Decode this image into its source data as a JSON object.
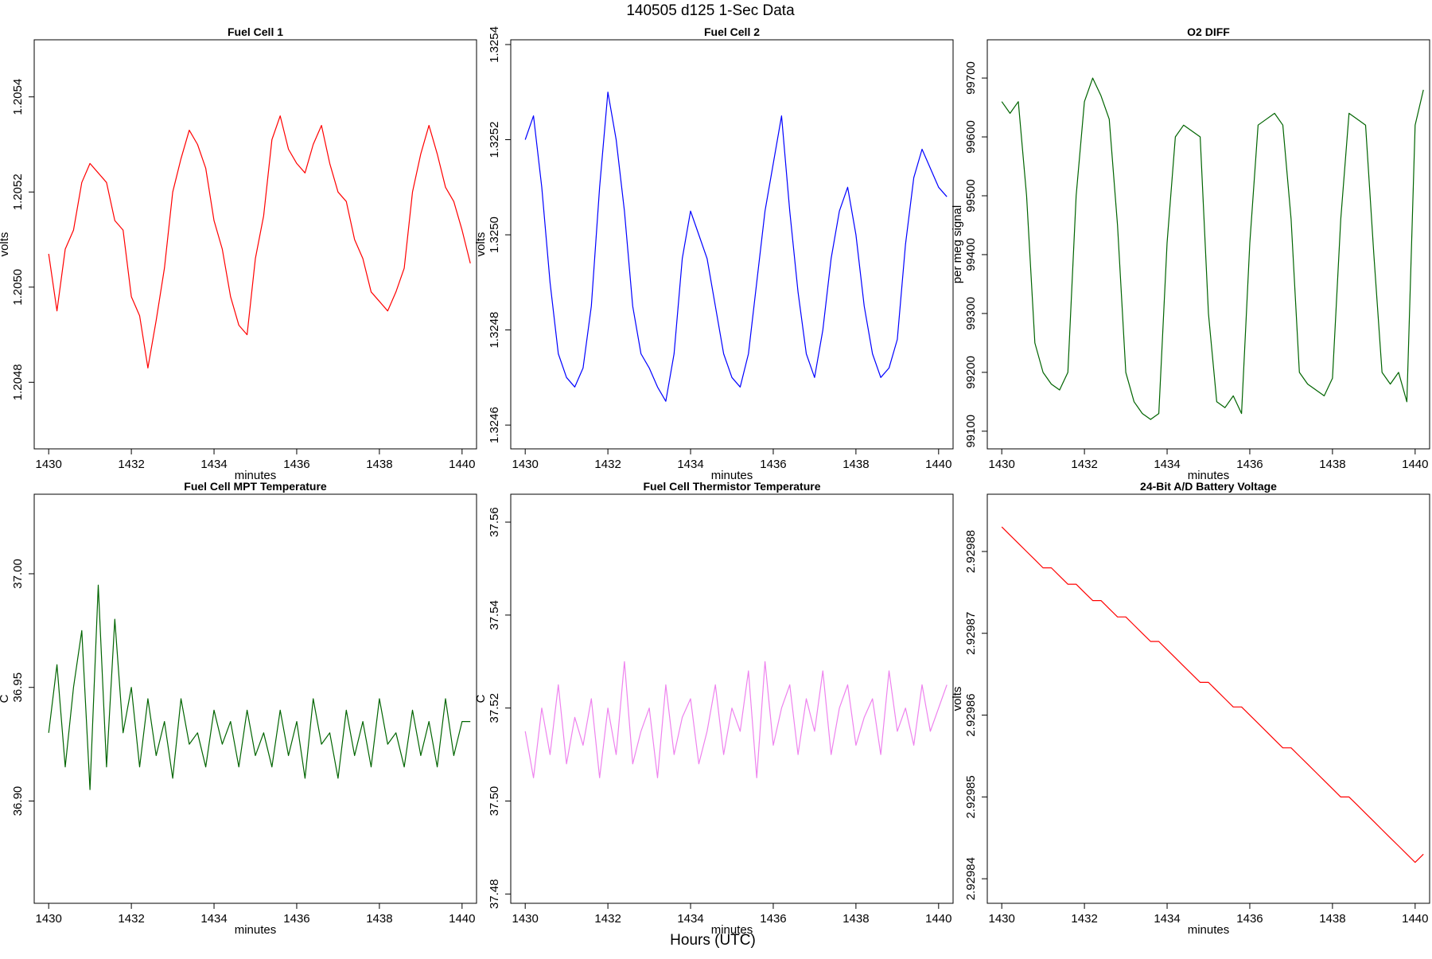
{
  "figure": {
    "title": "140505   d125   1-Sec Data",
    "bottom_label": "Hours (UTC)"
  },
  "chart_data": [
    {
      "type": "line",
      "title": "Fuel Cell 1",
      "xlabel": "minutes",
      "ylabel": "volts",
      "color": "#ff0000",
      "xlim": [
        1429.65,
        1440.35
      ],
      "ylim": [
        1.20466,
        1.20552
      ],
      "xticks": [
        1430,
        1432,
        1434,
        1436,
        1438,
        1440
      ],
      "xtick_labels": [
        "1430",
        "1432",
        "1434",
        "1436",
        "1438",
        "1440"
      ],
      "yticks": [
        1.2048,
        1.205,
        1.2052,
        1.2054
      ],
      "ytick_labels": [
        "1.2048",
        "1.2050",
        "1.2052",
        "1.2054"
      ],
      "x_start": 1430,
      "x_step": 0.2,
      "y": [
        1.20507,
        1.20495,
        1.20508,
        1.20512,
        1.20522,
        1.20526,
        1.20524,
        1.20522,
        1.20514,
        1.20512,
        1.20498,
        1.20494,
        1.20483,
        1.20493,
        1.20504,
        1.2052,
        1.20527,
        1.20533,
        1.2053,
        1.20525,
        1.20514,
        1.20508,
        1.20498,
        1.20492,
        1.2049,
        1.20506,
        1.20515,
        1.20531,
        1.20536,
        1.20529,
        1.20526,
        1.20524,
        1.2053,
        1.20534,
        1.20526,
        1.2052,
        1.20518,
        1.2051,
        1.20506,
        1.20499,
        1.20497,
        1.20495,
        1.20499,
        1.20504,
        1.2052,
        1.20528,
        1.20534,
        1.20528,
        1.20521,
        1.20518,
        1.20512,
        1.20505
      ]
    },
    {
      "type": "line",
      "title": "Fuel Cell 2",
      "xlabel": "minutes",
      "ylabel": "volts",
      "color": "#0000ff",
      "xlim": [
        1429.65,
        1440.35
      ],
      "ylim": [
        1.32455,
        1.32541
      ],
      "xticks": [
        1430,
        1432,
        1434,
        1436,
        1438,
        1440
      ],
      "xtick_labels": [
        "1430",
        "1432",
        "1434",
        "1436",
        "1438",
        "1440"
      ],
      "yticks": [
        1.3246,
        1.3248,
        1.325,
        1.3252,
        1.3254
      ],
      "ytick_labels": [
        "1.3246",
        "1.3248",
        "1.3250",
        "1.3252",
        "1.3254"
      ],
      "x_start": 1430,
      "x_step": 0.2,
      "y": [
        1.3252,
        1.32525,
        1.3251,
        1.3249,
        1.32475,
        1.3247,
        1.32468,
        1.32472,
        1.32485,
        1.3251,
        1.3253,
        1.3252,
        1.32505,
        1.32485,
        1.32475,
        1.32472,
        1.32468,
        1.32465,
        1.32475,
        1.32495,
        1.32505,
        1.325,
        1.32495,
        1.32485,
        1.32475,
        1.3247,
        1.32468,
        1.32475,
        1.3249,
        1.32505,
        1.32515,
        1.32525,
        1.32505,
        1.32488,
        1.32475,
        1.3247,
        1.3248,
        1.32495,
        1.32505,
        1.3251,
        1.325,
        1.32485,
        1.32475,
        1.3247,
        1.32472,
        1.32478,
        1.32498,
        1.32512,
        1.32518,
        1.32514,
        1.3251,
        1.32508
      ]
    },
    {
      "type": "line",
      "title": "O2 DIFF",
      "xlabel": "minutes",
      "ylabel": "per meg signal",
      "color": "#006400",
      "xlim": [
        1429.65,
        1440.35
      ],
      "ylim": [
        99070,
        99765
      ],
      "xticks": [
        1430,
        1432,
        1434,
        1436,
        1438,
        1440
      ],
      "xtick_labels": [
        "1430",
        "1432",
        "1434",
        "1436",
        "1438",
        "1440"
      ],
      "yticks": [
        99100,
        99200,
        99300,
        99400,
        99500,
        99600,
        99700
      ],
      "ytick_labels": [
        "99100",
        "99200",
        "99300",
        "99400",
        "99500",
        "99600",
        "99700"
      ],
      "x_start": 1430,
      "x_step": 0.2,
      "y": [
        99660,
        99640,
        99660,
        99500,
        99250,
        99200,
        99180,
        99170,
        99200,
        99500,
        99660,
        99700,
        99670,
        99630,
        99450,
        99200,
        99150,
        99130,
        99120,
        99130,
        99420,
        99600,
        99620,
        99610,
        99600,
        99300,
        99150,
        99140,
        99160,
        99130,
        99420,
        99620,
        99630,
        99640,
        99620,
        99460,
        99200,
        99180,
        99170,
        99160,
        99190,
        99460,
        99640,
        99630,
        99620,
        99400,
        99200,
        99180,
        99200,
        99150,
        99620,
        99680
      ]
    },
    {
      "type": "line",
      "title": "Fuel Cell MPT Temperature",
      "xlabel": "minutes",
      "ylabel": "C",
      "color": "#006400",
      "xlim": [
        1429.65,
        1440.35
      ],
      "ylim": [
        36.855,
        37.035
      ],
      "xticks": [
        1430,
        1432,
        1434,
        1436,
        1438,
        1440
      ],
      "xtick_labels": [
        "1430",
        "1432",
        "1434",
        "1436",
        "1438",
        "1440"
      ],
      "yticks": [
        36.9,
        36.95,
        37.0
      ],
      "ytick_labels": [
        "36.90",
        "36.95",
        "37.00"
      ],
      "x_start": 1430,
      "x_step": 0.2,
      "y": [
        36.93,
        36.96,
        36.915,
        36.95,
        36.975,
        36.905,
        36.995,
        36.915,
        36.98,
        36.93,
        36.95,
        36.915,
        36.945,
        36.92,
        36.935,
        36.91,
        36.945,
        36.925,
        36.93,
        36.915,
        36.94,
        36.925,
        36.935,
        36.915,
        36.94,
        36.92,
        36.93,
        36.915,
        36.94,
        36.92,
        36.935,
        36.91,
        36.945,
        36.925,
        36.93,
        36.91,
        36.94,
        36.92,
        36.935,
        36.915,
        36.945,
        36.925,
        36.93,
        36.915,
        36.94,
        36.92,
        36.935,
        36.915,
        36.945,
        36.92,
        36.935,
        36.935
      ]
    },
    {
      "type": "line",
      "title": "Fuel Cell Thermistor Temperature",
      "xlabel": "minutes",
      "ylabel": "C",
      "color": "#ee82ee",
      "xlim": [
        1429.65,
        1440.35
      ],
      "ylim": [
        37.478,
        37.566
      ],
      "xticks": [
        1430,
        1432,
        1434,
        1436,
        1438,
        1440
      ],
      "xtick_labels": [
        "1430",
        "1432",
        "1434",
        "1436",
        "1438",
        "1440"
      ],
      "yticks": [
        37.48,
        37.5,
        37.52,
        37.54,
        37.56
      ],
      "ytick_labels": [
        "37.48",
        "37.50",
        "37.52",
        "37.54",
        "37.56"
      ],
      "x_start": 1430,
      "x_step": 0.2,
      "y": [
        37.515,
        37.505,
        37.52,
        37.51,
        37.525,
        37.508,
        37.518,
        37.512,
        37.522,
        37.505,
        37.52,
        37.51,
        37.53,
        37.508,
        37.515,
        37.52,
        37.505,
        37.525,
        37.51,
        37.518,
        37.522,
        37.508,
        37.515,
        37.525,
        37.51,
        37.52,
        37.515,
        37.528,
        37.505,
        37.53,
        37.512,
        37.52,
        37.525,
        37.51,
        37.522,
        37.515,
        37.528,
        37.51,
        37.52,
        37.525,
        37.512,
        37.518,
        37.522,
        37.51,
        37.528,
        37.515,
        37.52,
        37.512,
        37.525,
        37.515,
        37.52,
        37.525
      ]
    },
    {
      "type": "line",
      "title": "24-Bit A/D Battery Voltage",
      "xlabel": "minutes",
      "ylabel": "volts",
      "color": "#ff0000",
      "xlim": [
        1429.65,
        1440.35
      ],
      "ylim": [
        2.929837,
        2.929887
      ],
      "xticks": [
        1430,
        1432,
        1434,
        1436,
        1438,
        1440
      ],
      "xtick_labels": [
        "1430",
        "1432",
        "1434",
        "1436",
        "1438",
        "1440"
      ],
      "yticks": [
        2.92984,
        2.92985,
        2.92986,
        2.92987,
        2.92988
      ],
      "ytick_labels": [
        "2.92984",
        "2.92985",
        "2.92986",
        "2.92987",
        "2.92988"
      ],
      "x_start": 1430,
      "x_step": 0.2,
      "y": [
        2.929883,
        2.929882,
        2.929881,
        2.92988,
        2.929879,
        2.929878,
        2.929878,
        2.929877,
        2.929876,
        2.929876,
        2.929875,
        2.929874,
        2.929874,
        2.929873,
        2.929872,
        2.929872,
        2.929871,
        2.92987,
        2.929869,
        2.929869,
        2.929868,
        2.929867,
        2.929866,
        2.929865,
        2.929864,
        2.929864,
        2.929863,
        2.929862,
        2.929861,
        2.929861,
        2.92986,
        2.929859,
        2.929858,
        2.929857,
        2.929856,
        2.929856,
        2.929855,
        2.929854,
        2.929853,
        2.929852,
        2.929851,
        2.92985,
        2.92985,
        2.929849,
        2.929848,
        2.929847,
        2.929846,
        2.929845,
        2.929844,
        2.929843,
        2.929842,
        2.929843
      ]
    }
  ]
}
